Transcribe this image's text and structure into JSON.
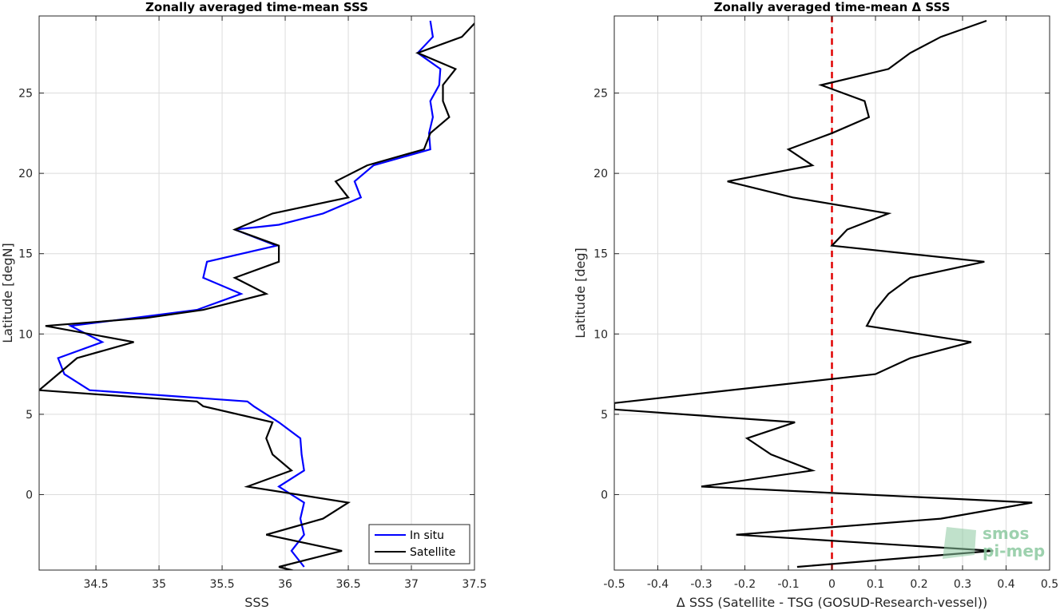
{
  "chart_data": [
    {
      "type": "line",
      "title": "Zonally averaged time-mean SSS",
      "xlabel": "SSS",
      "ylabel": "Latitude [degN]",
      "xlim": [
        34.05,
        37.5
      ],
      "ylim": [
        -4.7,
        29.8
      ],
      "xticks": [
        34.5,
        35,
        35.5,
        36,
        36.5,
        37,
        37.5
      ],
      "yticks": [
        0,
        5,
        10,
        15,
        20,
        25
      ],
      "grid": true,
      "legend_position": "bottom-right",
      "legend": [
        "In situ",
        "Satellite"
      ],
      "series": [
        {
          "name": "In situ",
          "color": "#0000ff",
          "points": [
            [
              37.15,
              29.5
            ],
            [
              37.17,
              28.5
            ],
            [
              37.05,
              27.5
            ],
            [
              37.23,
              26.5
            ],
            [
              37.22,
              25.5
            ],
            [
              37.15,
              24.5
            ],
            [
              37.17,
              23.5
            ],
            [
              37.14,
              22.5
            ],
            [
              37.15,
              21.5
            ],
            [
              36.7,
              20.5
            ],
            [
              36.55,
              19.5
            ],
            [
              36.6,
              18.5
            ],
            [
              36.3,
              17.5
            ],
            [
              35.95,
              16.8
            ],
            [
              35.6,
              16.5
            ],
            [
              35.93,
              15.5
            ],
            [
              35.38,
              14.5
            ],
            [
              35.35,
              13.5
            ],
            [
              35.65,
              12.5
            ],
            [
              35.3,
              11.5
            ],
            [
              34.8,
              11
            ],
            [
              34.3,
              10.5
            ],
            [
              34.55,
              9.5
            ],
            [
              34.2,
              8.5
            ],
            [
              34.25,
              7.5
            ],
            [
              34.45,
              6.5
            ],
            [
              35.7,
              5.8
            ],
            [
              35.75,
              5.5
            ],
            [
              35.95,
              4.5
            ],
            [
              36.12,
              3.5
            ],
            [
              36.13,
              2.5
            ],
            [
              36.15,
              1.5
            ],
            [
              35.95,
              0.5
            ],
            [
              36.15,
              -0.5
            ],
            [
              36.12,
              -1.5
            ],
            [
              36.15,
              -2.5
            ],
            [
              36.05,
              -3.5
            ],
            [
              36.15,
              -4.5
            ]
          ]
        },
        {
          "name": "Satellite",
          "color": "#000000",
          "points": [
            [
              37.5,
              29.8
            ],
            [
              37.52,
              29.5
            ],
            [
              37.4,
              28.5
            ],
            [
              37.05,
              27.5
            ],
            [
              37.35,
              26.5
            ],
            [
              37.25,
              25.5
            ],
            [
              37.25,
              24.5
            ],
            [
              37.3,
              23.5
            ],
            [
              37.15,
              22.5
            ],
            [
              37.1,
              21.5
            ],
            [
              36.65,
              20.5
            ],
            [
              36.4,
              19.5
            ],
            [
              36.5,
              18.5
            ],
            [
              35.9,
              17.5
            ],
            [
              35.6,
              16.5
            ],
            [
              35.95,
              15.5
            ],
            [
              35.95,
              14.5
            ],
            [
              35.6,
              13.5
            ],
            [
              35.85,
              12.5
            ],
            [
              35.35,
              11.5
            ],
            [
              34.9,
              11
            ],
            [
              34.1,
              10.5
            ],
            [
              34.8,
              9.5
            ],
            [
              34.35,
              8.5
            ],
            [
              34.2,
              7.5
            ],
            [
              34.05,
              6.5
            ],
            [
              35.3,
              5.8
            ],
            [
              35.35,
              5.5
            ],
            [
              35.9,
              4.5
            ],
            [
              35.85,
              3.5
            ],
            [
              35.9,
              2.5
            ],
            [
              36.05,
              1.5
            ],
            [
              35.7,
              0.5
            ],
            [
              36.5,
              -0.5
            ],
            [
              36.3,
              -1.5
            ],
            [
              35.85,
              -2.5
            ],
            [
              36.45,
              -3.5
            ],
            [
              35.95,
              -4.5
            ],
            [
              36.1,
              -4.8
            ]
          ]
        }
      ]
    },
    {
      "type": "line",
      "title": "Zonally averaged time-mean Δ SSS",
      "xlabel": "Δ SSS (Satellite - TSG (GOSUD-Research-vessel))",
      "ylabel": "Latitude [deg]",
      "xlim": [
        -0.5,
        0.5
      ],
      "ylim": [
        -4.7,
        29.8
      ],
      "xticks": [
        -0.5,
        -0.4,
        -0.3,
        -0.2,
        -0.1,
        0,
        0.1,
        0.2,
        0.3,
        0.4,
        0.5
      ],
      "yticks": [
        0,
        5,
        10,
        15,
        20,
        25
      ],
      "grid": true,
      "reference_line": {
        "x": 0,
        "color": "#e00000",
        "style": "dashed"
      },
      "series": [
        {
          "color": "#000000",
          "points": [
            [
              0.355,
              29.5
            ],
            [
              0.25,
              28.5
            ],
            [
              0.18,
              27.5
            ],
            [
              0.13,
              26.5
            ],
            [
              -0.025,
              25.5
            ],
            [
              0.075,
              24.5
            ],
            [
              0.085,
              23.5
            ],
            [
              0.0,
              22.5
            ],
            [
              -0.1,
              21.5
            ],
            [
              -0.045,
              20.5
            ],
            [
              -0.24,
              19.5
            ],
            [
              -0.09,
              18.5
            ],
            [
              0.13,
              17.5
            ],
            [
              0.035,
              16.5
            ],
            [
              0.0,
              15.5
            ],
            [
              0.35,
              14.5
            ],
            [
              0.18,
              13.5
            ],
            [
              0.13,
              12.5
            ],
            [
              0.1,
              11.5
            ],
            [
              0.08,
              10.5
            ],
            [
              0.32,
              9.5
            ],
            [
              0.18,
              8.5
            ],
            [
              0.1,
              7.5
            ],
            [
              -0.5,
              5.7
            ],
            [
              -0.5,
              5.3
            ],
            [
              -0.085,
              4.5
            ],
            [
              -0.195,
              3.5
            ],
            [
              -0.14,
              2.5
            ],
            [
              -0.045,
              1.5
            ],
            [
              -0.3,
              0.5
            ],
            [
              0.46,
              -0.5
            ],
            [
              0.25,
              -1.5
            ],
            [
              -0.22,
              -2.5
            ],
            [
              0.37,
              -3.5
            ],
            [
              -0.08,
              -4.5
            ]
          ]
        }
      ]
    }
  ],
  "logo": {
    "text1": "smos",
    "text2": "pi-mep"
  }
}
